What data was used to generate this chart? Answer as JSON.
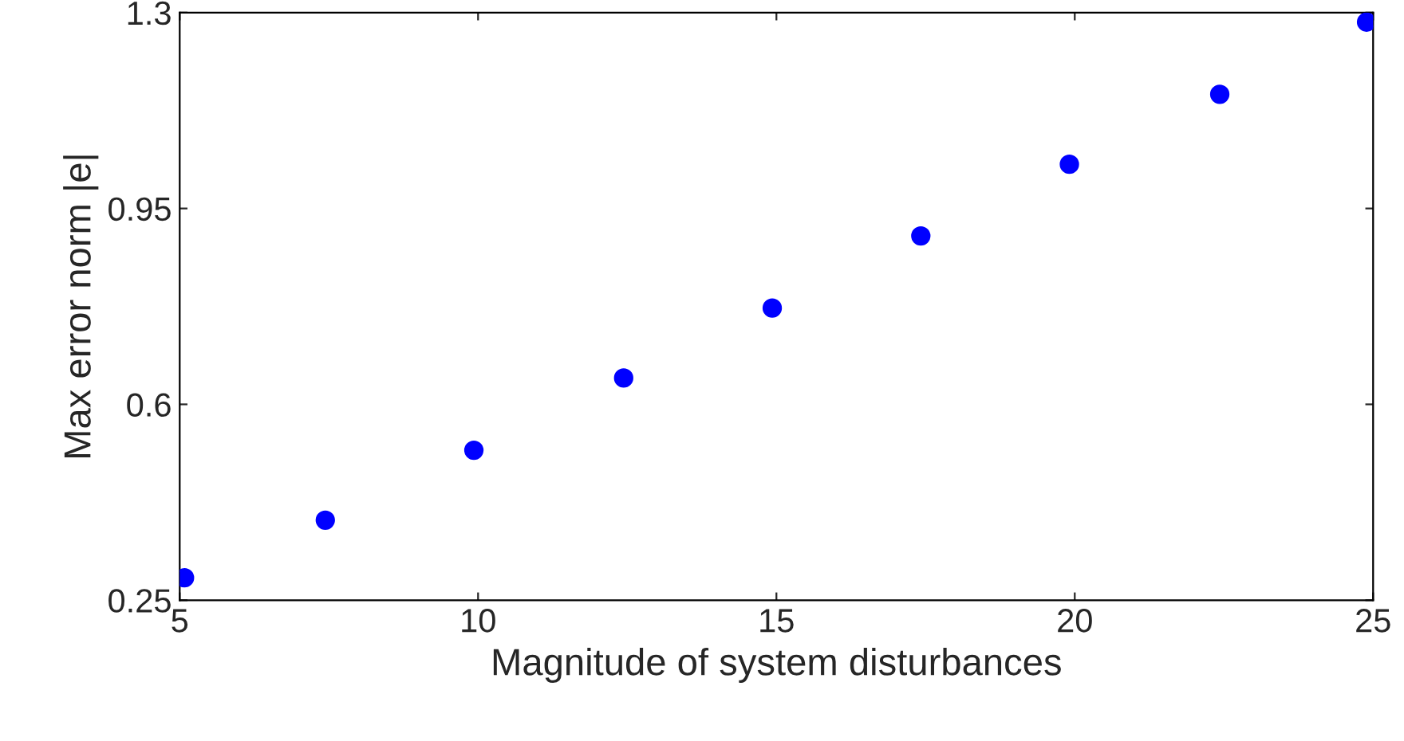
{
  "chart_data": {
    "type": "scatter",
    "xlabel": "Magnitude of system disturbances",
    "ylabel": "Max error norm |e|",
    "x": [
      5.08,
      7.44,
      9.93,
      12.44,
      14.93,
      17.42,
      19.91,
      22.43,
      24.89
    ],
    "series": [
      {
        "color": "#0000ff",
        "values": [
          0.29,
          0.393,
          0.518,
          0.647,
          0.772,
          0.901,
          1.029,
          1.154,
          1.283
        ]
      }
    ],
    "xlim": [
      5,
      25
    ],
    "xticks": [
      5,
      10,
      15,
      20,
      25
    ],
    "ylim": [
      0.25,
      1.3
    ],
    "yticks": [
      0.25,
      0.6,
      0.95,
      1.3
    ],
    "marker": "circle",
    "grid": false,
    "legend": false
  }
}
